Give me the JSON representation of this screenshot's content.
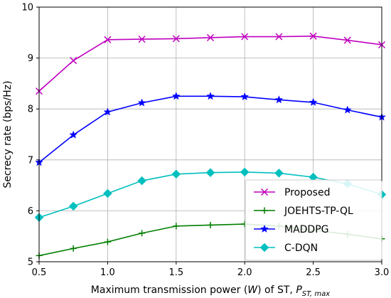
{
  "chart_data": {
    "type": "line",
    "xlabel_main": "Maximum transmission power (",
    "xlabel_var": "W",
    "xlabel_mid": ") of ST, ",
    "xlabel_sym": "P",
    "xlabel_sub": "ST, max",
    "ylabel": "Secrecy rate (bps/Hz)",
    "xlim": [
      0.5,
      3.0
    ],
    "ylim": [
      5,
      10
    ],
    "xticks": [
      "0.5",
      "1.0",
      "1.5",
      "2.0",
      "2.5",
      "3.0"
    ],
    "yticks": [
      "5",
      "6",
      "7",
      "8",
      "9",
      "10"
    ],
    "grid": true,
    "legend_position": "lower-right",
    "x": [
      0.5,
      0.75,
      1.0,
      1.25,
      1.5,
      1.75,
      2.0,
      2.25,
      2.5,
      2.75,
      3.0
    ],
    "series": [
      {
        "name": "Proposed",
        "color": "#bf00bf",
        "marker": "x",
        "values": [
          8.35,
          8.95,
          9.36,
          9.37,
          9.38,
          9.4,
          9.42,
          9.42,
          9.43,
          9.35,
          9.26
        ]
      },
      {
        "name": "JOEHTS-TP-QL",
        "color": "#007f00",
        "marker": "plus",
        "values": [
          5.12,
          5.26,
          5.39,
          5.56,
          5.7,
          5.72,
          5.74,
          5.7,
          5.62,
          5.54,
          5.45
        ]
      },
      {
        "name": "MADDPG",
        "color": "#0000ff",
        "marker": "star",
        "values": [
          6.95,
          7.49,
          7.94,
          8.12,
          8.25,
          8.25,
          8.24,
          8.18,
          8.13,
          7.98,
          7.84
        ]
      },
      {
        "name": "C-DQN",
        "color": "#00bfbf",
        "marker": "diamond",
        "values": [
          5.87,
          6.09,
          6.34,
          6.59,
          6.72,
          6.75,
          6.76,
          6.74,
          6.66,
          6.53,
          6.32
        ]
      }
    ]
  }
}
